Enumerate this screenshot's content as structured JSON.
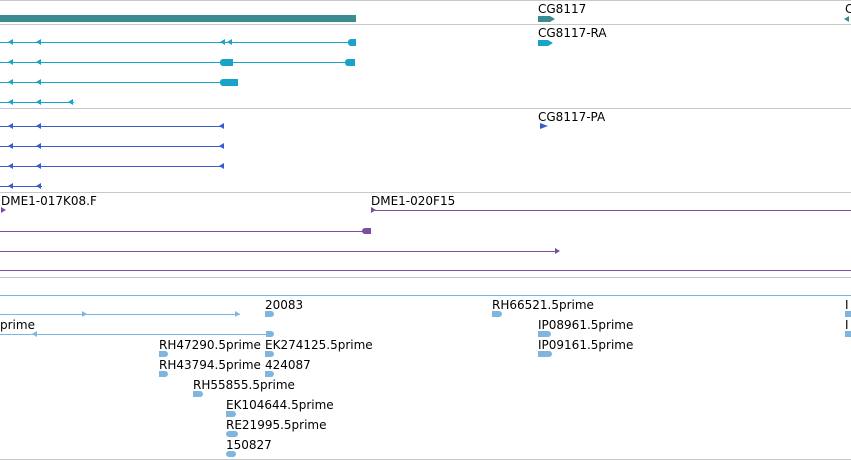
{
  "colors": {
    "gene_bar": "#3a8c8f",
    "transcript_ra": "#1aa3c8",
    "transcript_pa": "#3a5ccc",
    "clone": "#7a4fa0",
    "est": "#7fb6e0",
    "separator": "#c8c8c8"
  },
  "genes": {
    "label_cg8117": "CG8117",
    "label_c_partial": "C"
  },
  "transcripts": {
    "label_ra": "CG8117-RA"
  },
  "proteins": {
    "label_pa": "CG8117-PA"
  },
  "clones": {
    "label_1": "DME1-017K08.F",
    "label_2": "DME1-020F15"
  },
  "ests": {
    "labels": [
      "20083",
      "RH66521.5prime",
      "I",
      "prime",
      "IP08961.5prime",
      "I",
      "RH47290.5prime",
      "EK274125.5prime",
      "IP09161.5prime",
      "RH43794.5prime",
      "424087",
      "RH55855.5prime",
      "EK104644.5prime",
      "RE21995.5prime",
      "150827"
    ]
  }
}
